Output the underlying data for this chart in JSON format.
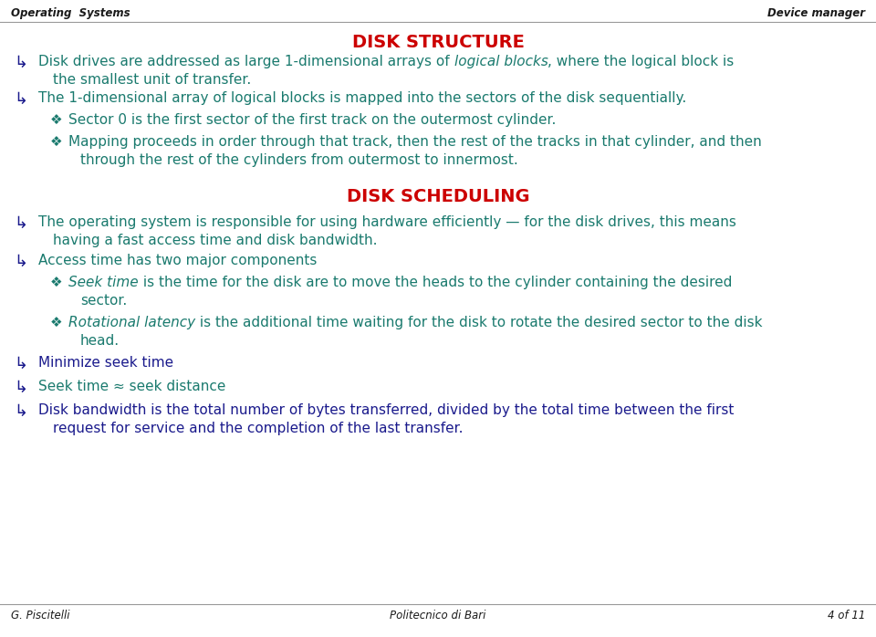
{
  "bg_color": "#ffffff",
  "header_left": "Operating  Systems",
  "header_right": "Device manager",
  "footer_left": "G. Piscitelli",
  "footer_center": "Politecnico di Bari",
  "footer_right": "4 of 11",
  "title1": "DISK STRUCTURE",
  "title2": "DISK SCHEDULING",
  "header_color": "#1a1a1a",
  "title_color": "#cc0000",
  "color_teal": "#1a7a6e",
  "color_blue": "#1a1a8c",
  "color_diamond_teal": "#1a7a6e",
  "em_dash": "—",
  "approx": "≈",
  "font_size_header": 8.5,
  "font_size_title": 14,
  "font_size_body": 11,
  "font_size_footer": 8.5,
  "sym_main": "↳",
  "sym_diamond": "❖"
}
